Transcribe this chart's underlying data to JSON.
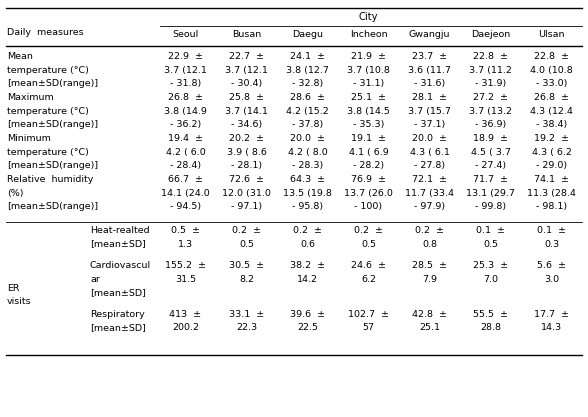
{
  "title": "City",
  "col_header": [
    "Seoul",
    "Busan",
    "Daegu",
    "Incheon",
    "Gwangju",
    "Daejeon",
    "Ulsan"
  ],
  "background_color": "#ffffff",
  "font_size": 6.8,
  "header_font_size": 7.2,
  "table_data": [
    {
      "labels": [
        "Mean",
        "temperature (°C)",
        "[mean±SD(range)]"
      ],
      "values_l1": [
        "22.9  ±",
        "22.7  ±",
        "24.1  ±",
        "21.9  ±",
        "23.7  ±",
        "22.8  ±",
        "22.8  ±"
      ],
      "values_l2": [
        "3.7 (12.1",
        "3.7 (12.1",
        "3.8 (12.7",
        "3.7 (10.8",
        "3.6 (11.7",
        "3.7 (11.2",
        "4.0 (10.8"
      ],
      "values_l3": [
        "- 31.8)",
        "- 30.4)",
        "- 32.8)",
        "- 31.1)",
        "- 31.6)",
        "- 31.9)",
        "- 33.0)"
      ]
    },
    {
      "labels": [
        "Maximum",
        "temperature (°C)",
        "[mean±SD(range)]"
      ],
      "values_l1": [
        "26.8  ±",
        "25.8  ±",
        "28.6  ±",
        "25.1  ±",
        "28.1  ±",
        "27.2  ±",
        "26.8  ±"
      ],
      "values_l2": [
        "3.8 (14.9",
        "3.7 (14.1",
        "4.2 (15.2",
        "3.8 (14.5",
        "3.7 (15.7",
        "3.7 (13.2",
        "4.3 (12.4"
      ],
      "values_l3": [
        "- 36.2)",
        "- 34.6)",
        "- 37.8)",
        "- 35.3)",
        "- 37.1)",
        "- 36.9)",
        "- 38.4)"
      ]
    },
    {
      "labels": [
        "Minimum",
        "temperature (°C)",
        "[mean±SD(range)]"
      ],
      "values_l1": [
        "19.4  ±",
        "20.2  ±",
        "20.0  ±",
        "19.1  ±",
        "20.0  ±",
        "18.9  ±",
        "19.2  ±"
      ],
      "values_l2": [
        "4.2 ( 6.0",
        "3.9 ( 8.6",
        "4.2 ( 8.0",
        "4.1 ( 6.9",
        "4.3 ( 6.1",
        "4.5 ( 3.7",
        "4.3 ( 6.2"
      ],
      "values_l3": [
        "- 28.4)",
        "- 28.1)",
        "- 28.3)",
        "- 28.2)",
        "- 27.8)",
        "- 27.4)",
        "- 29.0)"
      ]
    },
    {
      "labels": [
        "Relative  humidity",
        "(%)",
        "[mean±SD(range)]"
      ],
      "values_l1": [
        "66.7  ±",
        "72.6  ±",
        "64.3  ±",
        "76.9  ±",
        "72.1  ±",
        "71.7  ±",
        "74.1  ±"
      ],
      "values_l2": [
        "14.1 (24.0",
        "12.0 (31.0",
        "13.5 (19.8",
        "13.7 (26.0",
        "11.7 (33.4",
        "13.1 (29.7",
        "11.3 (28.4"
      ],
      "values_l3": [
        "- 94.5)",
        "- 97.1)",
        "- 95.8)",
        "- 100)",
        "- 97.9)",
        "- 99.8)",
        "- 98.1)"
      ]
    },
    {
      "labels": [
        "Heat-realted",
        "[mean±SD]",
        null
      ],
      "sub_label": true,
      "values_l1": [
        "0.5  ±",
        "0.2  ±",
        "0.2  ±",
        "0.2  ±",
        "0.2  ±",
        "0.1  ±",
        "0.1  ±"
      ],
      "values_l2": [
        "1.3",
        "0.5",
        "0.6",
        "0.5",
        "0.8",
        "0.5",
        "0.3"
      ],
      "values_l3": null
    },
    {
      "labels": [
        "Cardiovascul",
        "ar",
        "[mean±SD]"
      ],
      "sub_label": true,
      "er_label": "ER\nvisits",
      "values_l1": [
        "155.2  ±",
        "30.5  ±",
        "38.2  ±",
        "24.6  ±",
        "28.5  ±",
        "25.3  ±",
        "5.6  ±"
      ],
      "values_l2": [
        "31.5",
        "8.2",
        "14.2",
        "6.2",
        "7.9",
        "7.0",
        "3.0"
      ],
      "values_l3": null
    },
    {
      "labels": [
        "Respiratory",
        "[mean±SD]",
        null
      ],
      "sub_label": true,
      "values_l1": [
        "413  ±",
        "33.1  ±",
        "39.6  ±",
        "102.7  ±",
        "42.8  ±",
        "55.5  ±",
        "17.7  ±"
      ],
      "values_l2": [
        "200.2",
        "22.3",
        "22.5",
        "57",
        "25.1",
        "28.8",
        "14.3"
      ],
      "values_l3": null
    }
  ]
}
